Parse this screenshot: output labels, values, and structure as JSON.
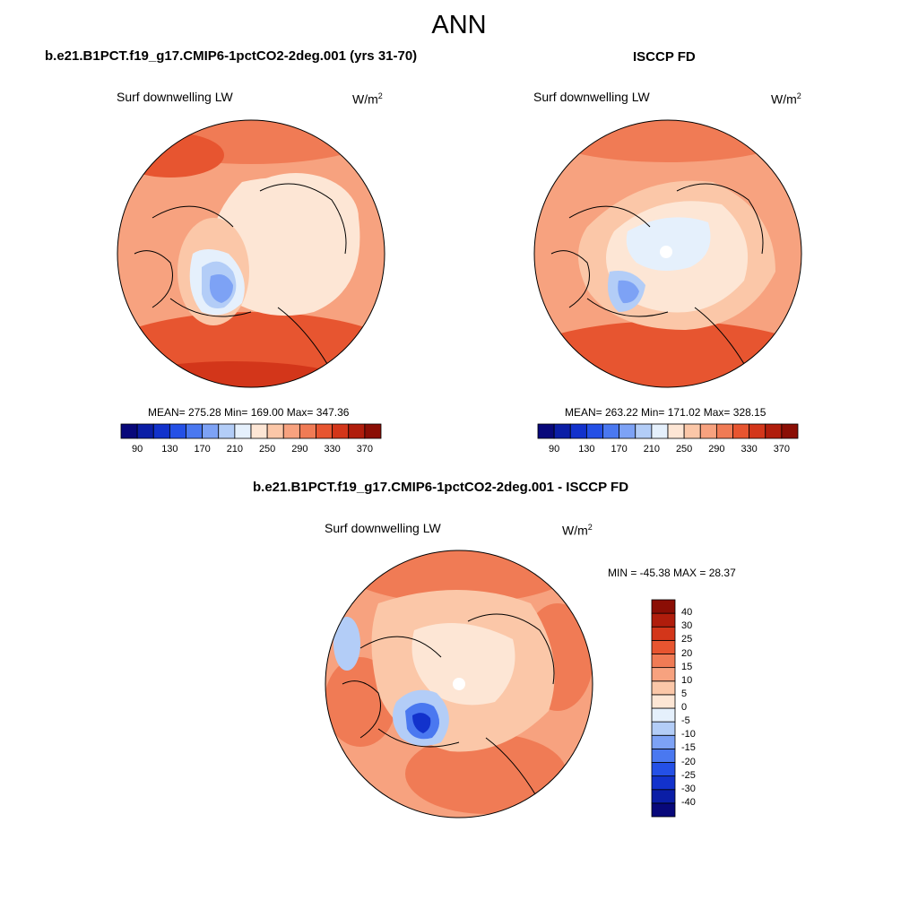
{
  "figure": {
    "title": "ANN",
    "diff_title": "b.e21.B1PCT.f19_g17.CMIP6-1pctCO2-2deg.001 - ISCCP FD"
  },
  "panels": {
    "model": {
      "case_title": "b.e21.B1PCT.f19_g17.CMIP6-1pctCO2-2deg.001 (yrs 31-70)",
      "var_label": "Surf downwelling LW",
      "units_base": "W/m",
      "units_exp": "2",
      "stats": "MEAN= 275.28  Min= 169.00  Max= 347.36"
    },
    "obs": {
      "case_title": "ISCCP FD",
      "var_label": "Surf downwelling LW",
      "units_base": "W/m",
      "units_exp": "2",
      "stats": "MEAN= 263.22  Min= 171.02  Max= 328.15"
    },
    "diff": {
      "var_label": "Surf downwelling LW",
      "units_base": "W/m",
      "units_exp": "2",
      "stats": "MIN = -45.38 MAX =  28.37"
    }
  },
  "colorbars": {
    "abs": {
      "colors": [
        "#08087a",
        "#0b1ea6",
        "#1232cc",
        "#2450e6",
        "#4a78f0",
        "#7da2f5",
        "#b3cdf7",
        "#e5f0fc",
        "#fde6d5",
        "#fbc7a8",
        "#f7a27f",
        "#f07b55",
        "#e75530",
        "#d3361a",
        "#b01d0c",
        "#8b0e05"
      ],
      "tick_labels": [
        "90",
        "130",
        "170",
        "210",
        "250",
        "290",
        "330",
        "370"
      ]
    },
    "diff": {
      "colors": [
        "#08087a",
        "#0b1ea6",
        "#1232cc",
        "#2450e6",
        "#4a78f0",
        "#7da2f5",
        "#b3cdf7",
        "#e5f0fc",
        "#fde6d5",
        "#fbc7a8",
        "#f7a27f",
        "#f07b55",
        "#e75530",
        "#d3361a",
        "#b01d0c",
        "#8b0e05"
      ],
      "tick_labels": [
        "-40",
        "-30",
        "-25",
        "-20",
        "-15",
        "-10",
        "-5",
        "0",
        "5",
        "10",
        "15",
        "20",
        "25",
        "30",
        "40"
      ]
    }
  }
}
